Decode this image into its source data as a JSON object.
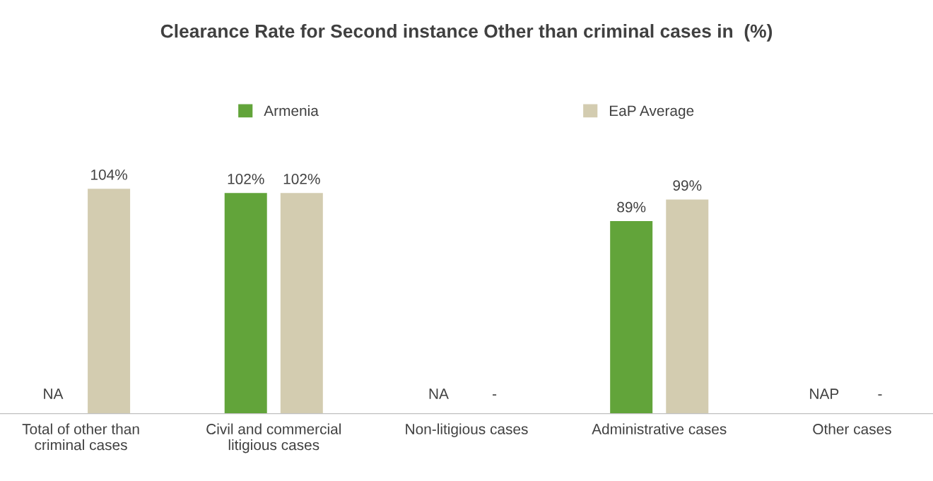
{
  "chart_data": {
    "type": "bar",
    "title": "Clearance Rate for Second instance Other than criminal cases in  (%)",
    "categories": [
      "Total of other than\ncriminal cases",
      "Civil and commercial\nlitigious cases",
      "Non-litigious cases",
      "Administrative cases",
      "Other cases"
    ],
    "series": [
      {
        "name": "Armenia",
        "color": "#62a43a",
        "values": [
          null,
          102,
          null,
          89,
          null
        ],
        "value_labels": [
          "NA",
          "102%",
          "NA",
          "89%",
          "NAP"
        ]
      },
      {
        "name": "EaP Average",
        "color": "#d3ccb0",
        "values": [
          104,
          102,
          null,
          99,
          null
        ],
        "value_labels": [
          "104%",
          "102%",
          "-",
          "99%",
          "-"
        ]
      }
    ],
    "legend": "top",
    "grid": false
  }
}
